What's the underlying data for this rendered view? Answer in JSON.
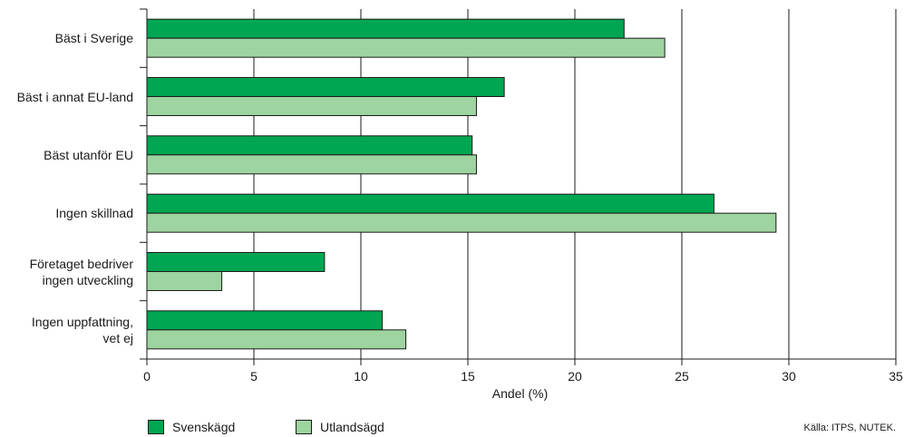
{
  "chart_data": {
    "type": "bar",
    "orientation": "horizontal",
    "categories": [
      "Bäst i Sverige",
      "Bäst i annat EU-land",
      "Bäst utanför EU",
      "Ingen skillnad",
      "Företaget bedriver ingen utveckling",
      "Ingen uppfattning, vet ej"
    ],
    "category_lines": [
      [
        "Bäst i Sverige"
      ],
      [
        "Bäst i annat EU-land"
      ],
      [
        "Bäst utanför EU"
      ],
      [
        "Ingen skillnad"
      ],
      [
        "Företaget bedriver",
        "ingen utveckling"
      ],
      [
        "Ingen uppfattning,",
        "vet ej"
      ]
    ],
    "series": [
      {
        "name": "Svenskägd",
        "color": "#00a651",
        "values": [
          22.3,
          16.7,
          15.2,
          26.5,
          8.3,
          11.0
        ]
      },
      {
        "name": "Utlandsägd",
        "color": "#9dd49f",
        "values": [
          24.2,
          15.4,
          15.4,
          29.4,
          3.5,
          12.1
        ]
      }
    ],
    "xlabel": "Andel (%)",
    "xlim": [
      0,
      35
    ],
    "xticks": [
      0,
      5,
      10,
      15,
      20,
      25,
      30,
      35
    ],
    "grid": "vertical",
    "legend_position": "bottom-left"
  },
  "source": "Källa: ITPS, NUTEK."
}
